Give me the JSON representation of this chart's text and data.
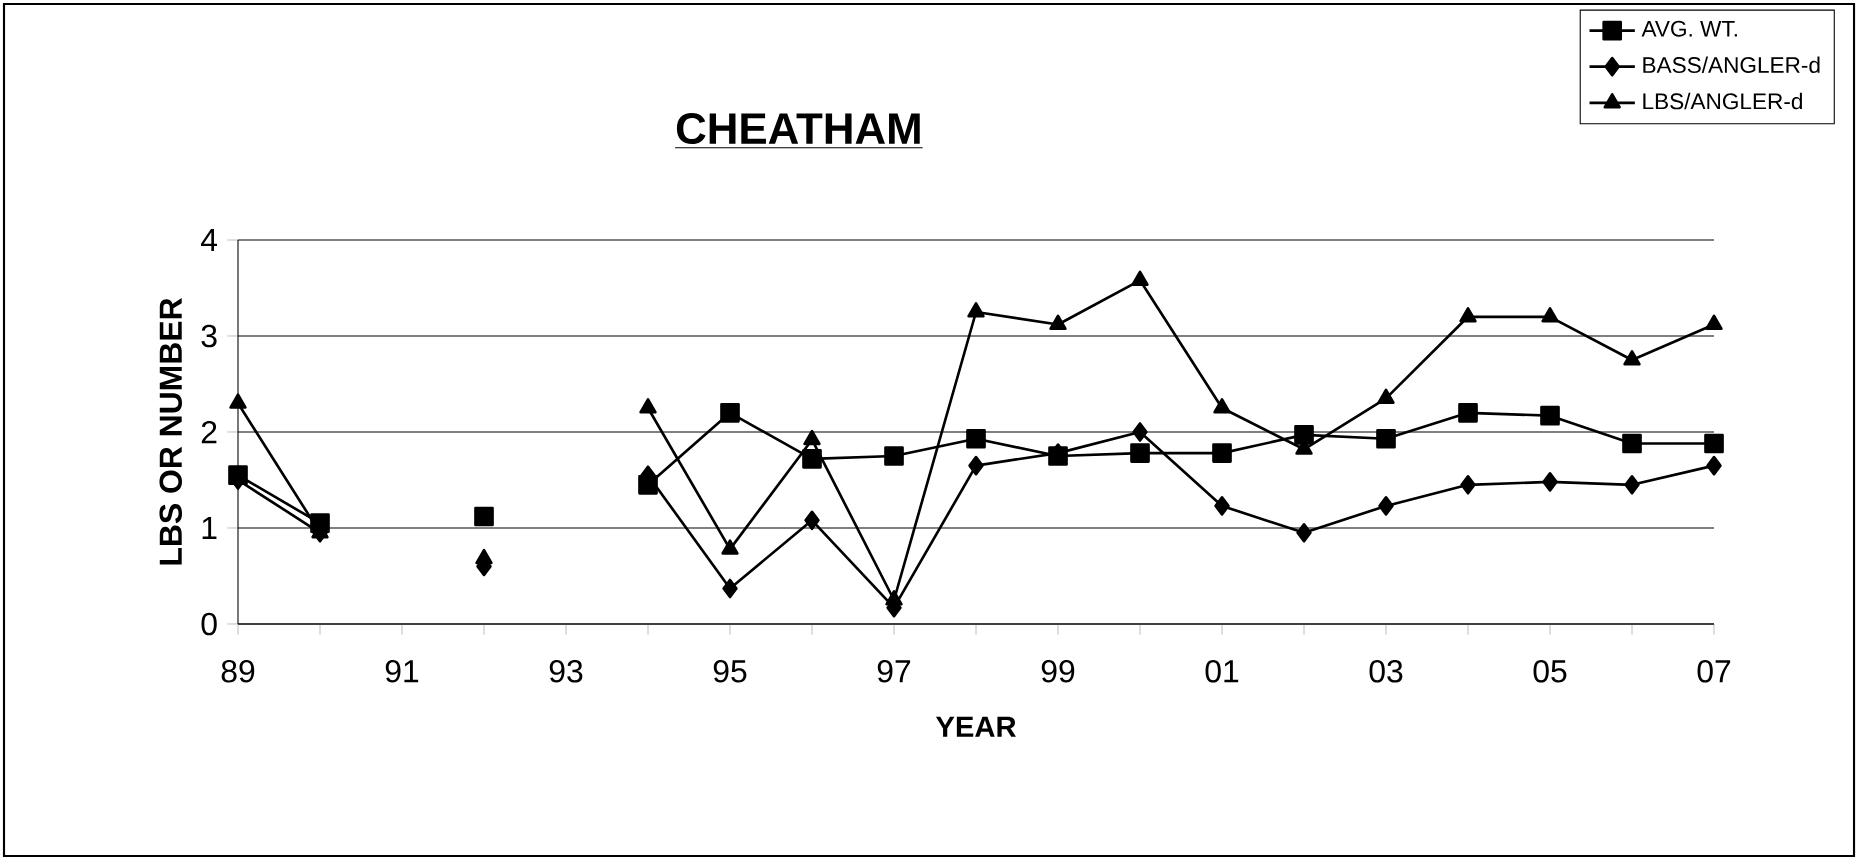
{
  "chart_data": {
    "type": "line",
    "title": "CHEATHAM",
    "xlabel": "YEAR",
    "ylabel": "LBS OR NUMBER",
    "categories": [
      "89",
      null,
      "91",
      null,
      "93",
      null,
      "95",
      null,
      "97",
      null,
      "99",
      null,
      "01",
      null,
      "03",
      null,
      "05",
      null,
      "07"
    ],
    "series": [
      {
        "name": "AVG. WT.",
        "color": "#000000",
        "marker": "square",
        "values": [
          1.55,
          1.05,
          null,
          1.12,
          null,
          1.45,
          2.2,
          1.72,
          1.75,
          1.93,
          1.75,
          1.78,
          1.78,
          1.97,
          1.93,
          2.2,
          2.17,
          1.88,
          1.88
        ]
      },
      {
        "name": "BASS/ANGLER-d",
        "color": "#000000",
        "marker": "diamond",
        "values": [
          1.5,
          0.95,
          null,
          0.6,
          null,
          1.55,
          0.37,
          1.08,
          0.17,
          1.65,
          1.78,
          2.0,
          1.23,
          0.95,
          1.23,
          1.45,
          1.48,
          1.45,
          1.65
        ]
      },
      {
        "name": "LBS/ANGLER-d",
        "color": "#000000",
        "marker": "triangle",
        "values": [
          2.3,
          0.95,
          null,
          0.68,
          null,
          2.25,
          0.78,
          1.92,
          0.25,
          3.25,
          3.12,
          3.58,
          2.25,
          1.82,
          2.35,
          3.2,
          3.2,
          2.75,
          3.12
        ]
      }
    ],
    "ylim": [
      0,
      4
    ],
    "yticks": [
      0,
      1,
      2,
      3,
      4
    ],
    "grid": "y",
    "legend": "top right",
    "line_style": "solid"
  }
}
